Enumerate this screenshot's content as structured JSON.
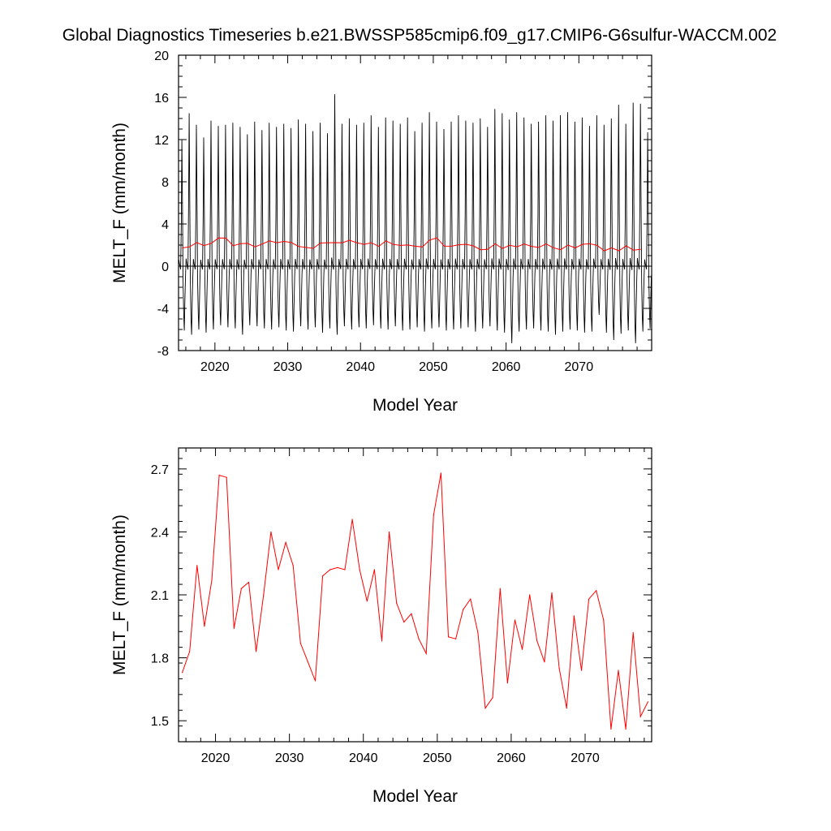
{
  "title": "Global Diagnostics Timeseries b.e21.BWSSP585cmip6.f09_g17.CMIP6-G6sulfur-WACCM.002",
  "colors": {
    "monthly": "#000000",
    "annual": "#ff0000",
    "zero_line": "#000000"
  },
  "chart_data": [
    {
      "type": "line",
      "name": "monthly-and-annual-timeseries",
      "xlabel": "Model Year",
      "ylabel": "MELT_F (mm/month)",
      "xlim": [
        2015,
        2080
      ],
      "ylim": [
        -8,
        20
      ],
      "x_ticks": [
        2020,
        2030,
        2040,
        2050,
        2060,
        2070
      ],
      "y_ticks": [
        -8,
        -4,
        0,
        4,
        8,
        12,
        16,
        20
      ],
      "x_tick_labels": [
        "2020",
        "2030",
        "2040",
        "2050",
        "2060",
        "2070"
      ],
      "y_tick_labels": [
        "-8",
        "-4",
        "0",
        "4",
        "8",
        "12",
        "16",
        "20"
      ],
      "zero_line": 0,
      "monthly_series": {
        "start_year": 2015,
        "years": 65,
        "description_values": "annual cycle peaks per year (mm/month)",
        "peaks": [
          12.0,
          14.5,
          13.4,
          12.2,
          13.8,
          13.3,
          13.4,
          13.6,
          13.2,
          12.5,
          13.7,
          12.9,
          13.6,
          13.2,
          13.5,
          13.1,
          13.9,
          13.5,
          12.8,
          13.6,
          12.6,
          16.3,
          13.5,
          14.0,
          13.4,
          13.6,
          14.3,
          13.2,
          14.1,
          13.8,
          13.5,
          14.1,
          12.8,
          13.6,
          14.6,
          13.7,
          13.0,
          13.7,
          14.3,
          13.8,
          13.6,
          14.0,
          13.2,
          14.9,
          14.5,
          13.9,
          14.6,
          14.1,
          13.5,
          13.7,
          14.3,
          13.8,
          14.3,
          14.6,
          13.7,
          14.1,
          13.3,
          14.3,
          13.4,
          14.0,
          15.3,
          13.5,
          15.5,
          15.4,
          12.7
        ],
        "troughs": [
          -6.1,
          -6.5,
          -6.0,
          -6.3,
          -6.0,
          -5.6,
          -5.8,
          -5.9,
          -6.5,
          -5.6,
          -5.7,
          -5.9,
          -6.0,
          -5.8,
          -6.1,
          -6.2,
          -5.7,
          -6.0,
          -5.8,
          -6.3,
          -5.9,
          -6.5,
          -5.7,
          -6.0,
          -5.8,
          -5.9,
          -5.6,
          -5.9,
          -6.0,
          -5.7,
          -6.1,
          -6.0,
          -5.8,
          -6.2,
          -5.9,
          -5.8,
          -6.1,
          -6.0,
          -5.9,
          -5.8,
          -6.2,
          -5.9,
          -5.7,
          -6.1,
          -6.3,
          -7.3,
          -6.2,
          -6.0,
          -5.9,
          -6.1,
          -6.2,
          -6.5,
          -6.2,
          -6.0,
          -6.1,
          -6.3,
          -6.2,
          -4.6,
          -6.3,
          -7.0,
          -6.4,
          -6.1,
          -7.3,
          -6.2,
          -5.9
        ]
      },
      "annual_series": "same as second chart annual values"
    },
    {
      "type": "line",
      "name": "annual-mean-timeseries",
      "xlabel": "Model Year",
      "ylabel": "MELT_F (mm/month)",
      "xlim": [
        2015,
        2079
      ],
      "ylim": [
        1.4,
        2.8
      ],
      "x_ticks": [
        2020,
        2030,
        2040,
        2050,
        2060,
        2070
      ],
      "y_ticks": [
        1.5,
        1.8,
        2.1,
        2.4,
        2.7
      ],
      "x_tick_labels": [
        "2020",
        "2030",
        "2040",
        "2050",
        "2060",
        "2070"
      ],
      "y_tick_labels": [
        "1.5",
        "1.8",
        "2.1",
        "2.4",
        "2.7"
      ],
      "x": [
        2015.5,
        2016.5,
        2017.5,
        2018.5,
        2019.5,
        2020.5,
        2021.5,
        2022.5,
        2023.5,
        2024.5,
        2025.5,
        2026.5,
        2027.5,
        2028.5,
        2029.5,
        2030.5,
        2031.5,
        2032.5,
        2033.5,
        2034.5,
        2035.5,
        2036.5,
        2037.5,
        2038.5,
        2039.5,
        2040.5,
        2041.5,
        2042.5,
        2043.5,
        2044.5,
        2045.5,
        2046.5,
        2047.5,
        2048.5,
        2049.5,
        2050.5,
        2051.5,
        2052.5,
        2053.5,
        2054.5,
        2055.5,
        2056.5,
        2057.5,
        2058.5,
        2059.5,
        2060.5,
        2061.5,
        2062.5,
        2063.5,
        2064.5,
        2065.5,
        2066.5,
        2067.5,
        2068.5,
        2069.5,
        2070.5,
        2071.5,
        2072.5,
        2073.5,
        2074.5,
        2075.5,
        2076.5,
        2077.5,
        2078.5
      ],
      "values": [
        1.73,
        1.83,
        2.24,
        1.95,
        2.17,
        2.67,
        2.66,
        1.94,
        2.13,
        2.16,
        1.83,
        2.1,
        2.4,
        2.22,
        2.35,
        2.24,
        1.87,
        1.78,
        1.69,
        2.19,
        2.22,
        2.23,
        2.22,
        2.46,
        2.22,
        2.07,
        2.22,
        1.88,
        2.4,
        2.06,
        1.97,
        2.01,
        1.89,
        1.82,
        2.48,
        2.68,
        1.9,
        1.89,
        2.03,
        2.08,
        1.92,
        1.56,
        1.61,
        2.13,
        1.68,
        1.98,
        1.84,
        2.1,
        1.88,
        1.78,
        2.11,
        1.75,
        1.56,
        2.0,
        1.74,
        2.08,
        2.12,
        1.98,
        1.46,
        1.74,
        1.46,
        1.92,
        1.52,
        1.59
      ]
    }
  ]
}
